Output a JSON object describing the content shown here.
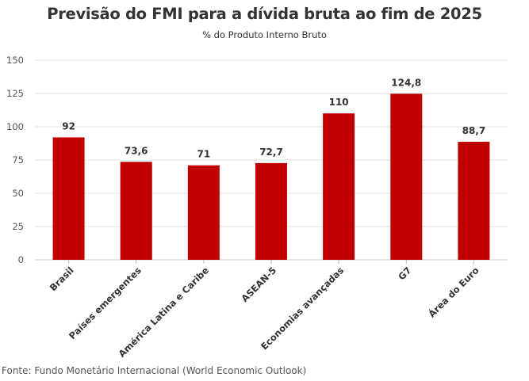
{
  "chart_data": {
    "type": "bar",
    "title": "Previsão do FMI para a dívida bruta ao fim de 2025",
    "subtitle": "% do Produto Interno Bruto",
    "categories": [
      "Brasil",
      "Países emergentes",
      "América Latina e Caribe",
      "ASEAN-5",
      "Economias avançadas",
      "G7",
      "Área do Euro"
    ],
    "values": [
      92,
      73.6,
      71,
      72.7,
      110,
      124.8,
      88.7
    ],
    "data_labels": [
      "92",
      "73,6",
      "71",
      "72,7",
      "110",
      "124,8",
      "88,7"
    ],
    "yticks": [
      "0",
      "25",
      "50",
      "75",
      "100",
      "125",
      "150"
    ],
    "ylim": [
      0,
      150
    ],
    "xlabel": "",
    "ylabel": "",
    "grid": true,
    "bar_color": "#c00000",
    "source": "Fonte: Fundo Monetário Internacional (World Economic Outlook)"
  }
}
